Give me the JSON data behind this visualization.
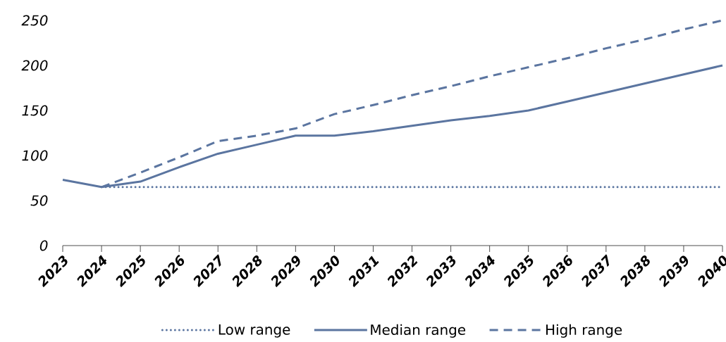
{
  "chart_data": {
    "type": "line",
    "categories": [
      "2023",
      "2024",
      "2025",
      "2026",
      "2027",
      "2028",
      "2029",
      "2030",
      "2031",
      "2032",
      "2033",
      "2034",
      "2035",
      "2036",
      "2037",
      "2038",
      "2039",
      "2040"
    ],
    "series": [
      {
        "name": "Low range",
        "color": "#5b75a0",
        "line_style": "dotted",
        "values": [
          null,
          65,
          65,
          65,
          65,
          65,
          65,
          65,
          65,
          65,
          65,
          65,
          65,
          65,
          65,
          65,
          65,
          65
        ]
      },
      {
        "name": "Median range",
        "color": "#5b75a0",
        "line_style": "solid",
        "values": [
          73,
          65,
          71,
          87,
          102,
          112,
          122,
          122,
          127,
          133,
          139,
          144,
          150,
          160,
          170,
          180,
          190,
          200
        ]
      },
      {
        "name": "High range",
        "color": "#5b75a0",
        "line_style": "dashed",
        "values": [
          null,
          65,
          81,
          98,
          116,
          122,
          130,
          146,
          156,
          167,
          177,
          188,
          198,
          208,
          219,
          229,
          240,
          250
        ]
      }
    ],
    "ylim": [
      0,
      250
    ],
    "yticks": [
      0,
      50,
      100,
      150,
      200,
      250
    ],
    "grid": false,
    "legend": "bottom",
    "marker": "none"
  }
}
